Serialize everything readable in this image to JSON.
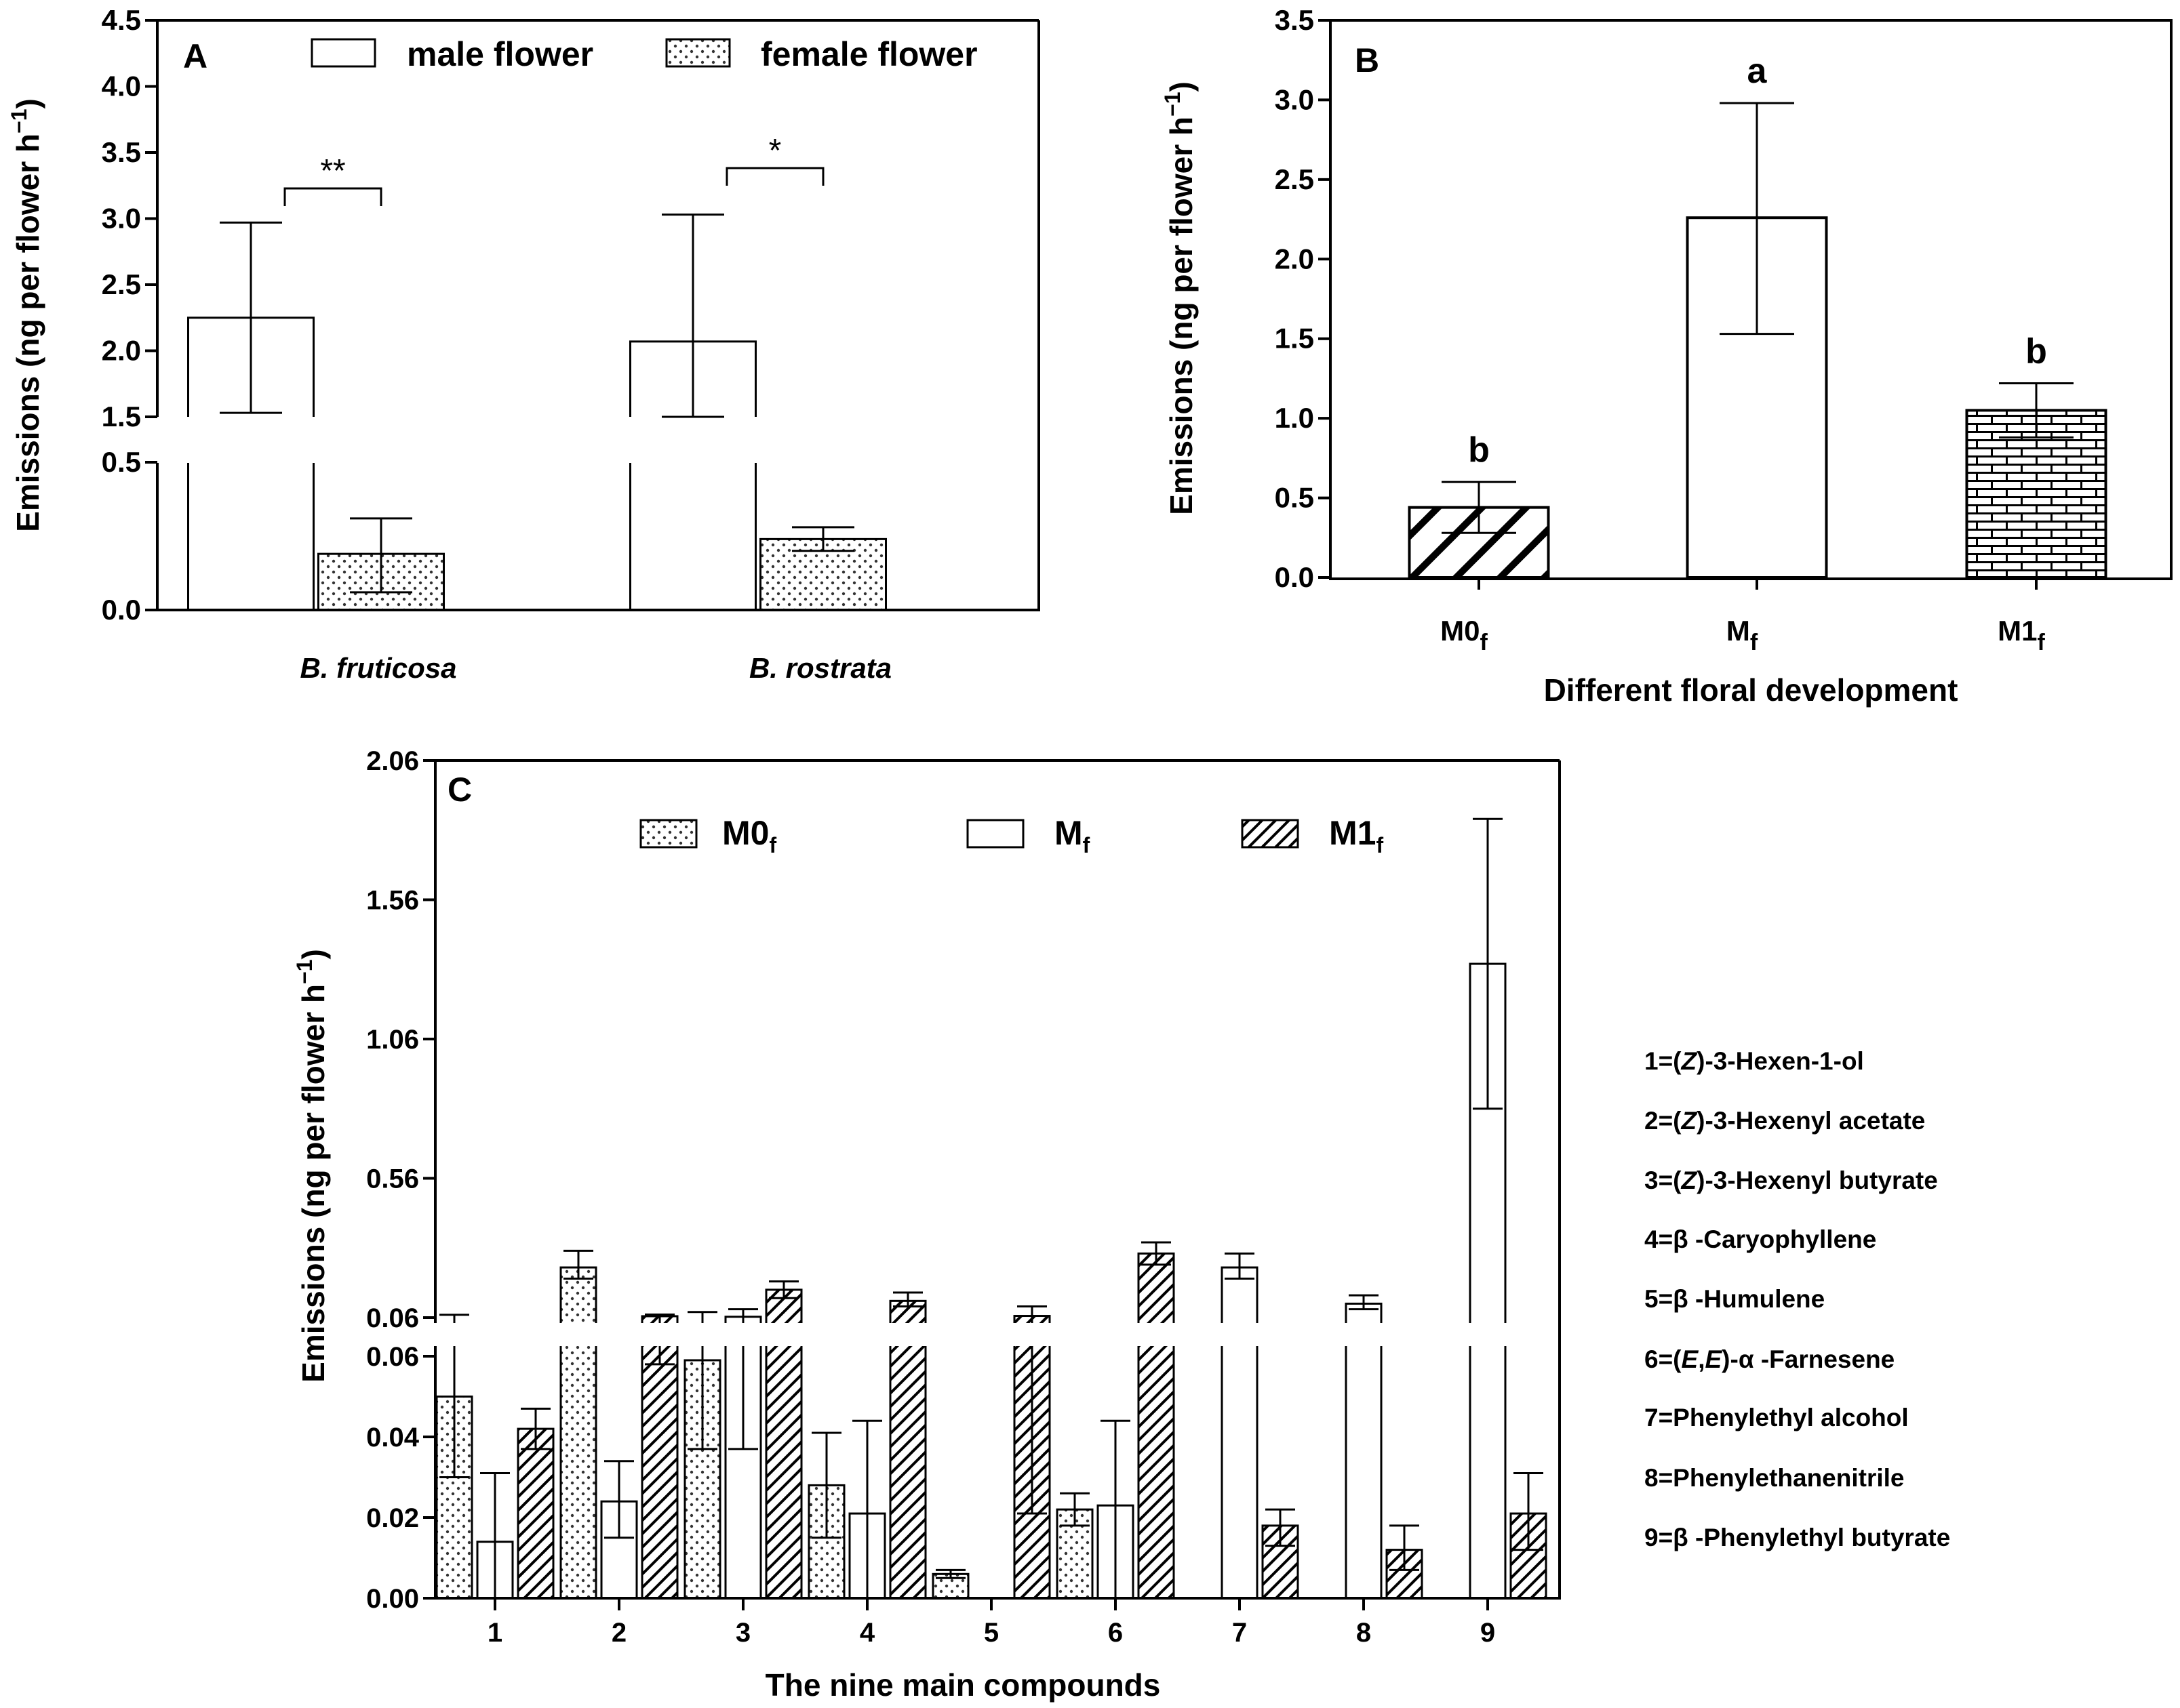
{
  "figure": {
    "panels": [
      "A",
      "B",
      "C"
    ],
    "compound_key_labels": [
      "1=(Z)-3-Hexen-1-ol",
      "2=(Z)-3-Hexenyl acetate",
      "3=(Z)-3-Hexenyl butyrate",
      "4=β -Caryophyllene",
      "5=β -Humulene",
      "6=(E,E)-α -Farnesene",
      "7=Phenylethyl alcohol",
      "8=Phenylethanenitrile",
      "9=β -Phenylethyl butyrate"
    ]
  },
  "chart_data": [
    {
      "panel": "A",
      "type": "bar",
      "title": "",
      "xlabel": "",
      "ylabel": "Emissions (ng per flower h⁻¹)",
      "categories": [
        "B. fruticosa",
        "B. rostrata"
      ],
      "series": [
        {
          "name": "male flower",
          "pattern": "open",
          "values": [
            2.25,
            2.07
          ],
          "err_low": [
            1.53,
            1.5
          ],
          "err_high": [
            2.97,
            3.03
          ]
        },
        {
          "name": "female flower",
          "pattern": "dots",
          "values": [
            0.19,
            0.24
          ],
          "err_low": [
            0.06,
            0.2
          ],
          "err_high": [
            0.31,
            0.28
          ]
        }
      ],
      "significance": [
        "**",
        "*"
      ],
      "axis_break": {
        "lower_range": [
          0,
          0.5
        ],
        "upper_range": [
          1.5,
          4.5
        ]
      },
      "yticks": [
        "0.0",
        "0.5",
        "1.5",
        "2.0",
        "2.5",
        "3.0",
        "3.5",
        "4.0",
        "4.5"
      ],
      "legend": "top",
      "grid": false
    },
    {
      "panel": "B",
      "type": "bar",
      "title": "",
      "xlabel": "Different floral development",
      "ylabel": "Emissions (ng per flower h⁻¹)",
      "categories": [
        {
          "main": "M0",
          "sub": "f"
        },
        {
          "main": "M",
          "sub": "f"
        },
        {
          "main": "M1",
          "sub": "f"
        }
      ],
      "values": [
        0.44,
        2.26,
        1.05
      ],
      "err_low": [
        0.28,
        1.53,
        0.88
      ],
      "err_high": [
        0.6,
        2.98,
        1.22
      ],
      "patterns": [
        "diag",
        "open",
        "brick"
      ],
      "letters": [
        "b",
        "a",
        "b"
      ],
      "ylim": [
        0,
        3.5
      ],
      "yticks": [
        "0.0",
        "0.5",
        "1.0",
        "1.5",
        "2.0",
        "2.5",
        "3.0",
        "3.5"
      ],
      "grid": false
    },
    {
      "panel": "C",
      "type": "bar",
      "title": "",
      "xlabel": "The nine main compounds",
      "ylabel": "Emissions (ng per flower h⁻¹)",
      "categories": [
        "1",
        "2",
        "3",
        "4",
        "5",
        "6",
        "7",
        "8",
        "9"
      ],
      "series": [
        {
          "name": "M0",
          "name_sub": "f",
          "pattern": "dots",
          "values": [
            0.05,
            0.24,
            0.059,
            0.028,
            0.006,
            0.022,
            null,
            null,
            null
          ],
          "err_low": [
            0.03,
            0.2,
            0.037,
            0.015,
            0.005,
            0.018,
            null,
            null,
            null
          ],
          "err_high": [
            0.07,
            0.3,
            0.08,
            0.041,
            0.007,
            0.026,
            null,
            null,
            null
          ]
        },
        {
          "name": "M",
          "name_sub": "f",
          "pattern": "open",
          "values": [
            0.014,
            0.024,
            0.063,
            0.021,
            null,
            0.023,
            0.24,
            0.11,
            1.33
          ],
          "err_low": [
            0,
            0.015,
            0.037,
            0,
            null,
            0,
            0.2,
            0.09,
            0.81
          ],
          "err_high": [
            0.031,
            0.034,
            0.09,
            0.044,
            null,
            0.044,
            0.29,
            0.14,
            1.85
          ]
        },
        {
          "name": "M1",
          "name_sub": "f",
          "pattern": "diag",
          "values": [
            0.042,
            0.065,
            0.16,
            0.12,
            0.066,
            0.29,
            0.018,
            0.012,
            0.021
          ],
          "err_low": [
            0.037,
            0.058,
            0.13,
            0.1,
            0.021,
            0.25,
            0.013,
            0.007,
            0.012
          ],
          "err_high": [
            0.047,
            0.071,
            0.19,
            0.15,
            0.1,
            0.33,
            0.022,
            0.018,
            0.031
          ]
        }
      ],
      "axis_break": {
        "lower_range": [
          0,
          0.06
        ],
        "upper_range": [
          0.06,
          2.06
        ]
      },
      "yticks_lower": [
        "0.00",
        "0.02",
        "0.04",
        "0.06"
      ],
      "yticks_upper": [
        "0.06",
        "0.56",
        "1.06",
        "1.56",
        "2.06"
      ],
      "legend": "top",
      "grid": false
    }
  ]
}
